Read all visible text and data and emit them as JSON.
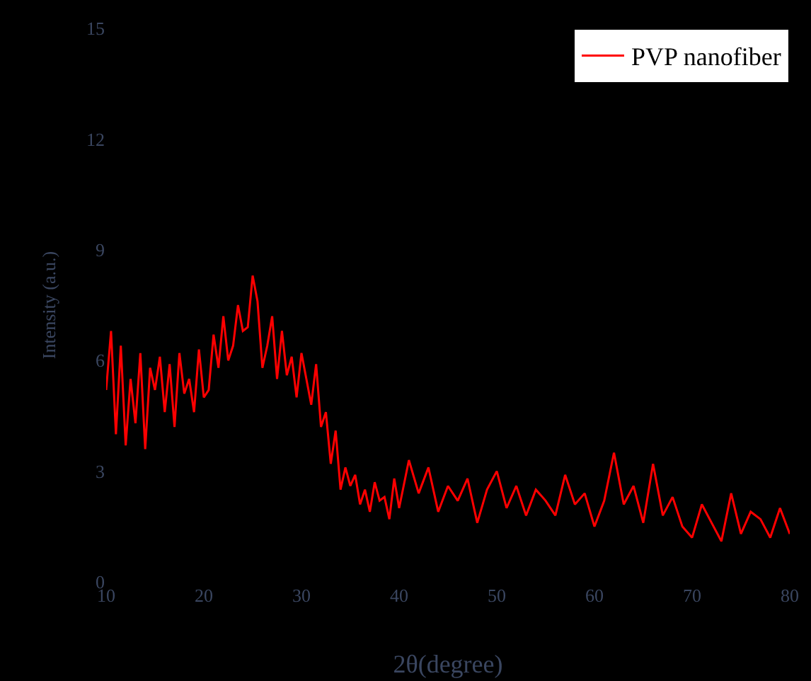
{
  "chart_data": {
    "type": "line",
    "xlabel": "2θ(degree)",
    "ylabel": "Intensity (a.u.)",
    "x": [
      10,
      10.5,
      11,
      11.5,
      12,
      12.5,
      13,
      13.5,
      14,
      14.5,
      15,
      15.5,
      16,
      16.5,
      17,
      17.5,
      18,
      18.5,
      19,
      19.5,
      20,
      20.5,
      21,
      21.5,
      22,
      22.5,
      23,
      23.5,
      24,
      24.5,
      25,
      25.5,
      26,
      26.5,
      27,
      27.5,
      28,
      28.5,
      29,
      29.5,
      30,
      30.5,
      31,
      31.5,
      32,
      32.5,
      33,
      33.5,
      34,
      34.5,
      35,
      35.5,
      36,
      36.5,
      37,
      37.5,
      38,
      38.5,
      39,
      39.5,
      40,
      41,
      42,
      43,
      44,
      45,
      46,
      47,
      48,
      49,
      50,
      51,
      52,
      53,
      54,
      55,
      56,
      57,
      58,
      59,
      60,
      61,
      62,
      63,
      64,
      65,
      66,
      67,
      68,
      69,
      70,
      71,
      72,
      73,
      74,
      75,
      76,
      77,
      78,
      79,
      80
    ],
    "series": [
      {
        "name": "PVP nanofiber",
        "color": "#ff0000",
        "values": [
          5.2,
          6.8,
          4,
          6.4,
          3.7,
          5.5,
          4.3,
          6.2,
          3.6,
          5.8,
          5.2,
          6.1,
          4.6,
          5.9,
          4.2,
          6.2,
          5.1,
          5.5,
          4.6,
          6.3,
          5,
          5.2,
          6.7,
          5.8,
          7.2,
          6,
          6.4,
          7.5,
          6.8,
          6.9,
          8.3,
          7.6,
          5.8,
          6.4,
          7.2,
          5.5,
          6.8,
          5.6,
          6.1,
          5,
          6.2,
          5.5,
          4.8,
          5.9,
          4.2,
          4.6,
          3.2,
          4.1,
          2.5,
          3.1,
          2.6,
          2.9,
          2.1,
          2.5,
          1.9,
          2.7,
          2.2,
          2.3,
          1.7,
          2.8,
          2,
          3.3,
          2.4,
          3.1,
          1.9,
          2.6,
          2.2,
          2.8,
          1.6,
          2.5,
          3,
          2,
          2.6,
          1.8,
          2.5,
          2.2,
          1.8,
          2.9,
          2.1,
          2.4,
          1.5,
          2.2,
          3.5,
          2.1,
          2.6,
          1.6,
          3.2,
          1.8,
          2.3,
          1.5,
          1.2,
          2.1,
          1.6,
          1.1,
          2.4,
          1.3,
          1.9,
          1.7,
          1.2,
          2,
          1.3
        ]
      }
    ],
    "xlim": [
      10,
      80
    ],
    "xticks": [
      10,
      20,
      30,
      40,
      50,
      60,
      70,
      80
    ],
    "ylim": [
      0,
      15
    ],
    "yticks": [
      0,
      3,
      6,
      9,
      12,
      15
    ],
    "grid": false,
    "legend": "top right",
    "line_style": "solid",
    "marker": "none"
  }
}
